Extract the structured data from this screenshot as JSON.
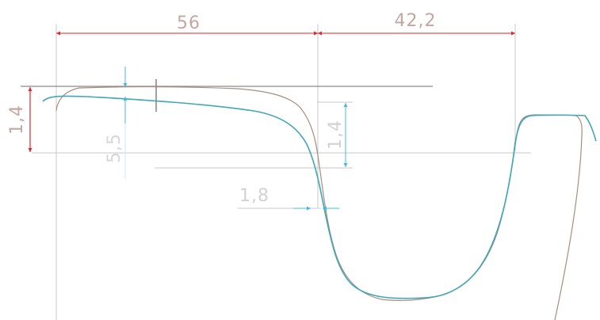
{
  "drawing": {
    "dimensions": {
      "width_56": "56",
      "width_42_2": "42,2",
      "height_1_4": "1,4",
      "height_5_5": "5,5",
      "height_1_4_right": "1,4",
      "gap_1_8": "1,8"
    },
    "colors": {
      "background": "#ffffff",
      "dimension_red": "#e0262b",
      "dimension_cyan": "#49b8df",
      "profile_teal": "#3fa7b5",
      "reference_brown": "#a88d7e",
      "dimension_text": "#c4a7a2",
      "extension_line": "#c9c9c9",
      "ground_line": "#8a8a8a"
    }
  }
}
